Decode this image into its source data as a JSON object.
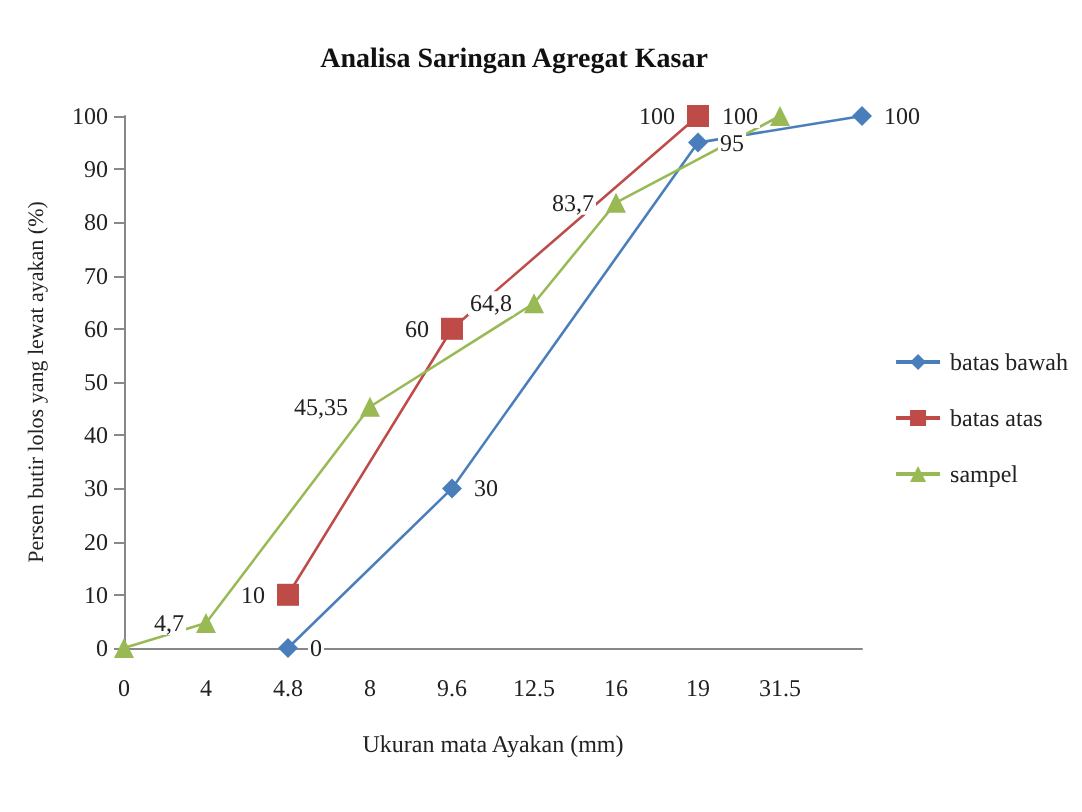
{
  "chart_data": {
    "type": "line",
    "title": "Analisa Saringan Agregat Kasar",
    "xlabel": "Ukuran mata Ayakan (mm)",
    "ylabel": "Persen butir lolos yang lewat ayakan (%)",
    "categories": [
      "0",
      "4",
      "4.8",
      "8",
      "9.6",
      "12.5",
      "16",
      "19",
      "31.5",
      null
    ],
    "series": [
      {
        "name": "batas bawah",
        "color": "#4a7ebb",
        "marker": "diamond",
        "values": [
          null,
          null,
          0,
          null,
          30,
          null,
          null,
          95,
          null,
          100
        ],
        "value_labels": [
          null,
          null,
          "0",
          null,
          "30",
          null,
          null,
          "95",
          null,
          "100"
        ]
      },
      {
        "name": "batas atas",
        "color": "#be4b48",
        "marker": "square",
        "values": [
          null,
          null,
          10,
          null,
          60,
          null,
          null,
          100,
          null,
          null
        ],
        "value_labels": [
          null,
          null,
          "10",
          null,
          "60",
          null,
          null,
          "100",
          null,
          null
        ]
      },
      {
        "name": "sampel",
        "color": "#98b954",
        "marker": "triangle",
        "values": [
          0,
          4.7,
          null,
          45.35,
          null,
          64.8,
          83.7,
          null,
          100,
          null
        ],
        "value_labels": [
          null,
          "4,7",
          null,
          "45,35",
          null,
          "64,8",
          "83,7",
          null,
          "100",
          null
        ]
      }
    ],
    "ylim": [
      0,
      100
    ],
    "yticks": [
      0,
      10,
      20,
      30,
      40,
      50,
      60,
      70,
      80,
      90,
      100
    ],
    "grid": false,
    "legend": "right"
  }
}
